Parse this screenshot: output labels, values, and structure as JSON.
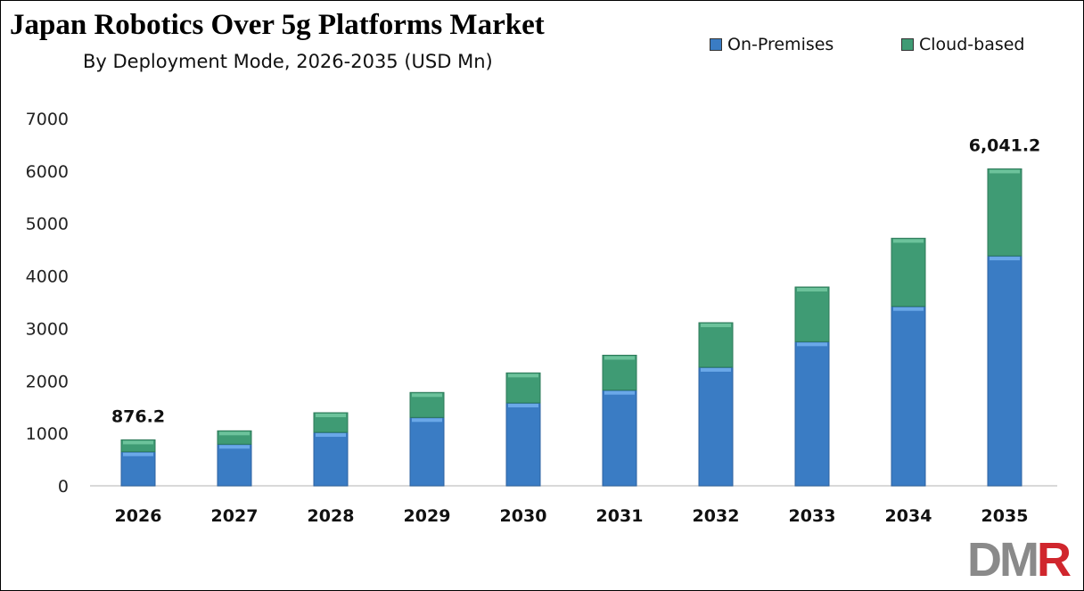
{
  "chart_data": {
    "type": "bar",
    "stacked": true,
    "title": "Japan Robotics Over 5g Platforms Market",
    "subtitle": "By Deployment Mode, 2026-2035 (USD Mn)",
    "categories": [
      "2026",
      "2027",
      "2028",
      "2029",
      "2030",
      "2031",
      "2032",
      "2033",
      "2034",
      "2035"
    ],
    "series": [
      {
        "name": "On-Premises",
        "color": "#3a7cc4",
        "values": [
          650,
          793,
          1019,
          1303,
          1580,
          1823,
          2260,
          2747,
          3420,
          4383
        ]
      },
      {
        "name": "Cloud-based",
        "color": "#3f9b74",
        "values": [
          226.2,
          255,
          374,
          476,
          572,
          666,
          849,
          1042,
          1298,
          1658.2
        ]
      }
    ],
    "data_labels": [
      {
        "category": "2026",
        "text": "876.2"
      },
      {
        "category": "2035",
        "text": "6,041.2"
      }
    ],
    "ylim": [
      0,
      7000
    ],
    "yticks": [
      "0",
      "1000",
      "2000",
      "3000",
      "4000",
      "5000",
      "6000",
      "7000"
    ],
    "grid": false,
    "legend_position": "top-right",
    "xlabel": "",
    "ylabel": ""
  },
  "logo": {
    "text": "DMR",
    "colors": [
      "#8a8a8a",
      "#d0262d"
    ]
  }
}
